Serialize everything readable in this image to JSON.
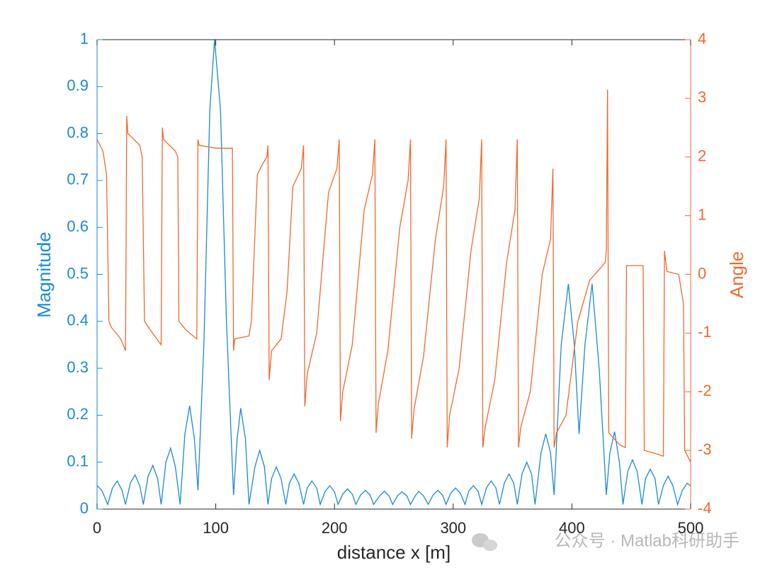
{
  "chart_data": {
    "type": "line",
    "x_label": "distance x [m]",
    "y_label": "Magnitude",
    "y2_label": "Angle",
    "watermark": "公众号 · Matlab科研助手",
    "xlim": [
      0,
      500
    ],
    "xticks": [
      0,
      100,
      200,
      300,
      400,
      500
    ],
    "ylim": [
      0,
      1
    ],
    "yticks": [
      0,
      0.1,
      0.2,
      0.3,
      0.4,
      0.5,
      0.6,
      0.7,
      0.8,
      0.9,
      1
    ],
    "y2lim": [
      -4,
      4
    ],
    "y2ticks": [
      -4,
      -3,
      -2,
      -1,
      0,
      1,
      2,
      3,
      4
    ],
    "series": [
      {
        "name": "Magnitude",
        "color": "#1a8ad4",
        "axis": "y",
        "x": [
          0,
          4,
          9,
          13,
          17,
          21,
          24,
          28,
          32,
          36,
          39,
          43,
          47,
          51,
          54,
          58,
          62,
          66,
          70,
          74,
          78,
          82,
          85,
          90,
          95,
          99,
          104,
          109,
          115,
          118,
          121,
          125,
          128,
          133,
          137,
          141,
          144,
          147,
          151,
          155,
          159,
          162,
          166,
          170,
          174,
          177,
          181,
          185,
          188,
          192,
          196,
          200,
          203,
          207,
          211,
          215,
          218,
          222,
          226,
          230,
          233,
          238,
          242,
          246,
          249,
          253,
          257,
          261,
          264,
          268,
          271,
          275,
          279,
          283,
          287,
          291,
          294,
          298,
          302,
          306,
          310,
          313,
          317,
          321,
          324,
          328,
          332,
          336,
          339,
          343,
          347,
          351,
          354,
          358,
          362,
          366,
          369,
          374,
          378,
          382,
          385,
          391,
          397,
          402,
          406,
          411,
          417,
          423,
          429,
          432,
          436,
          440,
          443,
          447,
          451,
          455,
          459,
          462,
          466,
          470,
          473,
          477,
          481,
          485,
          489,
          493,
          497,
          500
        ],
        "values": [
          0.05,
          0.04,
          0.01,
          0.045,
          0.06,
          0.04,
          0.01,
          0.055,
          0.073,
          0.05,
          0.01,
          0.07,
          0.093,
          0.065,
          0.01,
          0.1,
          0.13,
          0.09,
          0.01,
          0.16,
          0.22,
          0.15,
          0.04,
          0.35,
          0.85,
          1.0,
          0.85,
          0.4,
          0.03,
          0.15,
          0.215,
          0.15,
          0.01,
          0.09,
          0.125,
          0.09,
          0.01,
          0.065,
          0.09,
          0.065,
          0.01,
          0.055,
          0.075,
          0.055,
          0.01,
          0.045,
          0.06,
          0.045,
          0.01,
          0.037,
          0.05,
          0.037,
          0.01,
          0.032,
          0.043,
          0.032,
          0.01,
          0.03,
          0.04,
          0.03,
          0.01,
          0.028,
          0.038,
          0.028,
          0.01,
          0.028,
          0.037,
          0.028,
          0.01,
          0.028,
          0.038,
          0.028,
          0.01,
          0.03,
          0.04,
          0.03,
          0.01,
          0.034,
          0.045,
          0.034,
          0.01,
          0.038,
          0.05,
          0.038,
          0.01,
          0.045,
          0.06,
          0.045,
          0.01,
          0.055,
          0.075,
          0.055,
          0.01,
          0.075,
          0.1,
          0.075,
          0.01,
          0.12,
          0.16,
          0.12,
          0.03,
          0.35,
          0.48,
          0.35,
          0.16,
          0.35,
          0.48,
          0.3,
          0.03,
          0.12,
          0.165,
          0.1,
          0.01,
          0.08,
          0.105,
          0.08,
          0.01,
          0.065,
          0.085,
          0.065,
          0.01,
          0.05,
          0.07,
          0.05,
          0.01,
          0.04,
          0.055,
          0.05
        ]
      },
      {
        "name": "Angle",
        "color": "#f0692d",
        "axis": "y2",
        "x": [
          0,
          5,
          8,
          10,
          12,
          20,
          24,
          25,
          26,
          36,
          38,
          40,
          45,
          54,
          55,
          56,
          66,
          68,
          69,
          75,
          84,
          85,
          86,
          100,
          114,
          115,
          116,
          128,
          130,
          135,
          140,
          143,
          144,
          145,
          147,
          155,
          160,
          165,
          172,
          174,
          175,
          177,
          185,
          195,
          202,
          204,
          205,
          207,
          215,
          225,
          232,
          234,
          235,
          237,
          245,
          255,
          262,
          264,
          265,
          267,
          275,
          285,
          292,
          294,
          295,
          297,
          305,
          315,
          322,
          324,
          325,
          327,
          335,
          345,
          352,
          354,
          355,
          357,
          365,
          375,
          382,
          384,
          385,
          387,
          395,
          405,
          415,
          428,
          429,
          430,
          431,
          440,
          445,
          446,
          460,
          461,
          470,
          477,
          478,
          480,
          490,
          494,
          495,
          500
        ],
        "values": [
          2.3,
          2.1,
          1.7,
          -0.8,
          -0.9,
          -1.1,
          -1.3,
          2.7,
          2.4,
          2.2,
          2.0,
          -0.8,
          -0.95,
          -1.2,
          2.5,
          2.3,
          2.1,
          2.0,
          -0.8,
          -0.95,
          -1.1,
          2.3,
          2.2,
          2.15,
          2.15,
          -1.3,
          -1.1,
          -1.05,
          -0.8,
          1.7,
          1.9,
          2.0,
          2.2,
          -1.8,
          -1.3,
          -1.1,
          -0.3,
          1.5,
          1.8,
          2.2,
          -2.25,
          -1.7,
          -1.0,
          1.4,
          1.8,
          2.3,
          -2.5,
          -2.0,
          -1.2,
          1.1,
          1.7,
          2.3,
          -2.7,
          -2.2,
          -1.3,
          0.8,
          1.6,
          2.3,
          -2.8,
          -2.3,
          -1.4,
          0.6,
          1.5,
          2.3,
          -2.95,
          -2.4,
          -1.6,
          0.4,
          1.3,
          2.3,
          -2.95,
          -2.6,
          -1.8,
          0.2,
          1.1,
          2.3,
          -2.95,
          -2.6,
          -2.0,
          0.0,
          0.6,
          1.8,
          -2.95,
          -2.7,
          -2.4,
          -0.8,
          -0.1,
          0.2,
          0.4,
          3.15,
          -2.7,
          -2.9,
          -2.95,
          0.15,
          0.15,
          -3.0,
          -3.05,
          -3.1,
          0.4,
          0.05,
          0.0,
          -0.5,
          -3.0,
          -3.2
        ]
      }
    ]
  }
}
